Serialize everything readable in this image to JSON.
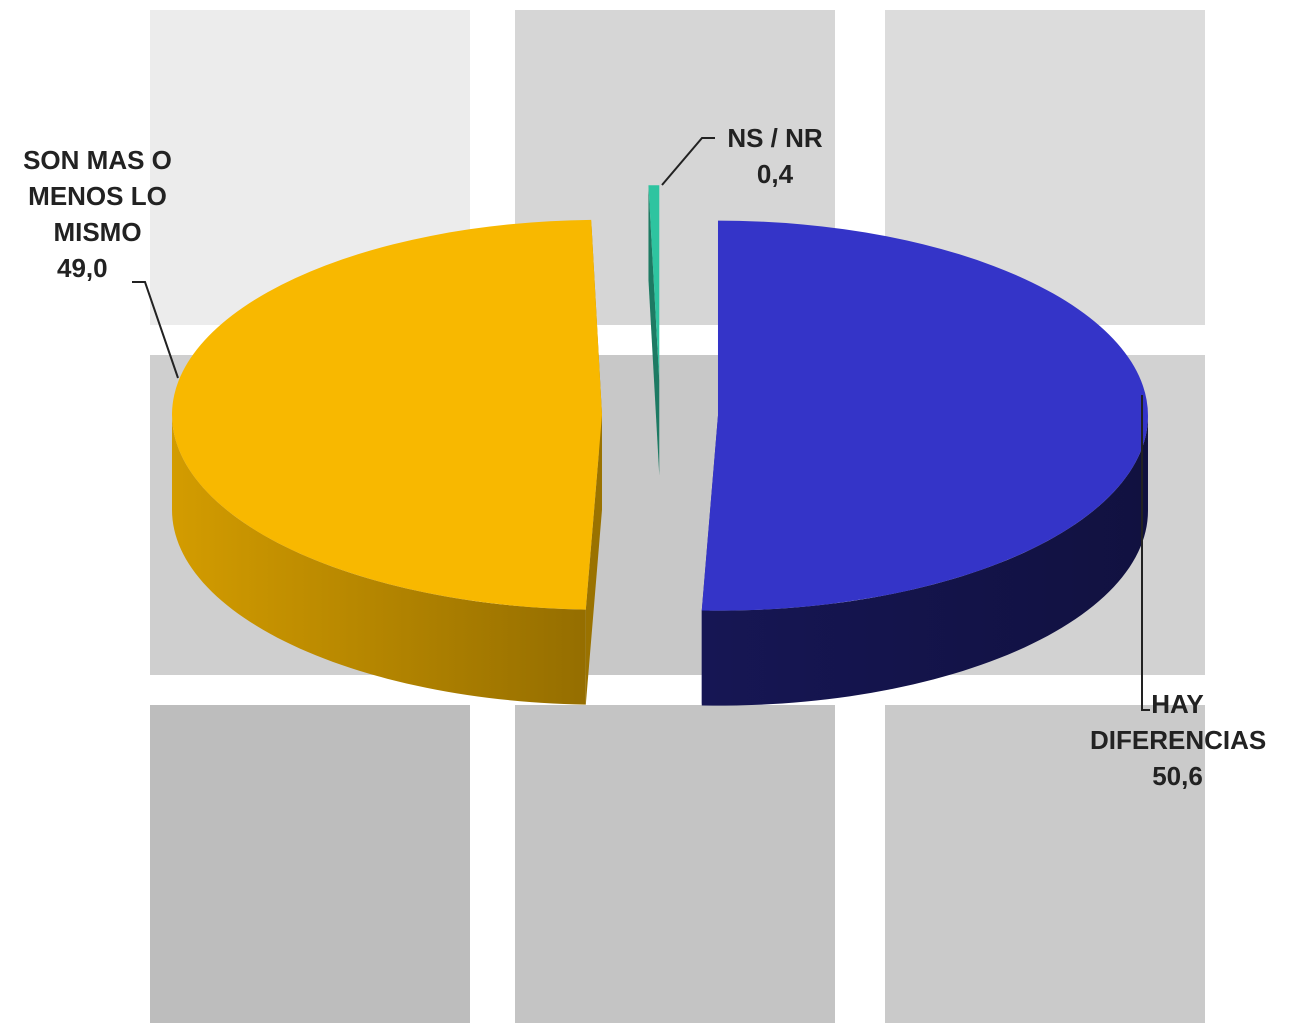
{
  "chart_data": {
    "type": "pie3d",
    "categories": [
      "HAY DIFERENCIAS",
      "SON MAS O MENOS LO MISMO",
      "NS / NR"
    ],
    "values": [
      50.6,
      49.0,
      0.4
    ],
    "value_labels": [
      "50,6",
      "49,0",
      "0,4"
    ],
    "colors": [
      "#3434c8",
      "#f8b800",
      "#2ec4a0"
    ]
  }
}
